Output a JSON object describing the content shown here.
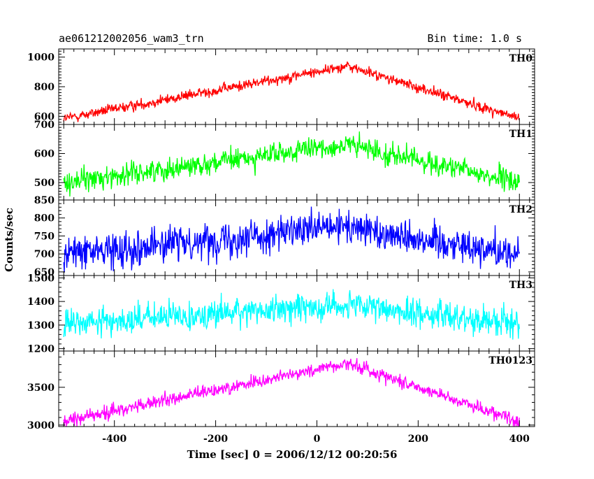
{
  "header": {
    "title": "ae061212002056_wam3_trn",
    "bin_time": "Bin time: 1.0 s"
  },
  "chart_data": {
    "type": "line",
    "xlabel": "Time [sec] 0 = 2006/12/12 00:20:56",
    "ylabel": "Counts/sec",
    "xlim": [
      -510,
      430
    ],
    "xticks": [
      -400,
      -200,
      0,
      200,
      400
    ],
    "x_range": [
      -500,
      400
    ],
    "x_step": 1,
    "panels": [
      {
        "name": "TH0",
        "color": "#ff0000",
        "ylim": [
          545,
          1055
        ],
        "yticks": [
          600,
          800,
          1000
        ],
        "model": {
          "peak_x": 60,
          "base": 585,
          "peak": 940,
          "left_width": 560,
          "right_width": 340,
          "noise": 28
        }
      },
      {
        "name": "TH1",
        "color": "#00ff00",
        "ylim": [
          440,
          700
        ],
        "yticks": [
          500,
          600,
          700
        ],
        "model": {
          "peak_x": 60,
          "base": 500,
          "peak": 630,
          "left_width": 560,
          "right_width": 340,
          "noise": 30
        }
      },
      {
        "name": "TH2",
        "color": "#0000ff",
        "ylim": [
          640,
          850
        ],
        "yticks": [
          650,
          700,
          750,
          800,
          850
        ],
        "model": {
          "peak_x": 60,
          "base": 700,
          "peak": 775,
          "left_width": 560,
          "right_width": 340,
          "noise": 38
        }
      },
      {
        "name": "TH3",
        "color": "#00ffff",
        "ylim": [
          1190,
          1510
        ],
        "yticks": [
          1200,
          1300,
          1400,
          1500
        ],
        "model": {
          "peak_x": 40,
          "base": 1300,
          "peak": 1385,
          "left_width": 560,
          "right_width": 400,
          "noise": 48
        }
      },
      {
        "name": "TH0123",
        "color": "#ff00ff",
        "ylim": [
          2980,
          3980
        ],
        "yticks": [
          3000,
          3500
        ],
        "model": {
          "peak_x": 60,
          "base": 3050,
          "peak": 3820,
          "left_width": 560,
          "right_width": 340,
          "noise": 70
        }
      }
    ]
  }
}
